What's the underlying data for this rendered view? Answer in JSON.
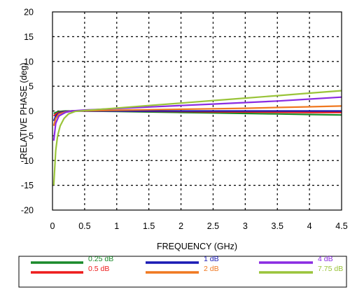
{
  "chart_data": {
    "type": "line",
    "title": "",
    "xlabel": "FREQUENCY (GHz)",
    "ylabel": "RELATIVE PHASE (deg)",
    "xlim": [
      0,
      4.5
    ],
    "ylim": [
      -20,
      20
    ],
    "xticks": [
      "0",
      "0.5",
      "1",
      "1.5",
      "2",
      "2.5",
      "3",
      "3.5",
      "4",
      "4.5"
    ],
    "yticks": [
      "20",
      "15",
      "10",
      "5",
      "0",
      "-5",
      "-10",
      "-15",
      "-20"
    ],
    "grid": true,
    "legend_position": "bottom",
    "series": [
      {
        "name": "0.25 dB",
        "color": "#1a8a2a",
        "x": [
          0.02,
          0.05,
          0.1,
          0.2,
          0.3,
          0.5,
          1,
          1.5,
          2,
          2.5,
          3,
          3.5,
          4,
          4.5
        ],
        "y": [
          -0.5,
          -0.3,
          -0.1,
          0,
          0,
          0,
          -0.1,
          -0.2,
          -0.3,
          -0.4,
          -0.5,
          -0.6,
          -0.7,
          -0.8
        ]
      },
      {
        "name": "0.5 dB",
        "color": "#ee1c1c",
        "x": [
          0.02,
          0.05,
          0.1,
          0.2,
          0.3,
          0.5,
          1,
          1.5,
          2,
          2.5,
          3,
          3.5,
          4,
          4.5
        ],
        "y": [
          -1.0,
          -0.6,
          -0.3,
          -0.1,
          0,
          0,
          0,
          -0.05,
          -0.1,
          -0.15,
          -0.2,
          -0.25,
          -0.3,
          -0.3
        ]
      },
      {
        "name": "1 dB",
        "color": "#1a1ab4",
        "x": [
          0.02,
          0.05,
          0.1,
          0.2,
          0.3,
          0.5,
          1,
          1.5,
          2,
          2.5,
          3,
          3.5,
          4,
          4.5
        ],
        "y": [
          -2.0,
          -1.0,
          -0.4,
          -0.1,
          0,
          0,
          0,
          0,
          0,
          0,
          0,
          0,
          0,
          0
        ]
      },
      {
        "name": "2 dB",
        "color": "#f07820",
        "x": [
          0.02,
          0.05,
          0.1,
          0.2,
          0.3,
          0.5,
          1,
          1.5,
          2,
          2.5,
          3,
          3.5,
          4,
          4.5
        ],
        "y": [
          -3.0,
          -1.5,
          -0.6,
          -0.2,
          0,
          0.05,
          0.15,
          0.25,
          0.35,
          0.45,
          0.55,
          0.7,
          0.85,
          1.0
        ]
      },
      {
        "name": "4 dB",
        "color": "#8a2be2",
        "x": [
          0.02,
          0.05,
          0.1,
          0.2,
          0.3,
          0.5,
          1,
          1.5,
          2,
          2.5,
          3,
          3.5,
          4,
          4.5
        ],
        "y": [
          -6.0,
          -2.5,
          -1.0,
          -0.3,
          0,
          0.2,
          0.5,
          0.8,
          1.1,
          1.4,
          1.7,
          2.0,
          2.4,
          2.8
        ]
      },
      {
        "name": "7.75 dB",
        "color": "#9ac43a",
        "x": [
          0.02,
          0.05,
          0.08,
          0.12,
          0.18,
          0.25,
          0.35,
          0.5,
          1,
          1.5,
          2,
          2.5,
          3,
          3.5,
          4,
          4.5
        ],
        "y": [
          -15,
          -8.0,
          -5.0,
          -3.0,
          -1.5,
          -0.6,
          -0.1,
          0.1,
          0.6,
          1.1,
          1.6,
          2.1,
          2.6,
          3.1,
          3.6,
          4.1
        ]
      }
    ]
  }
}
